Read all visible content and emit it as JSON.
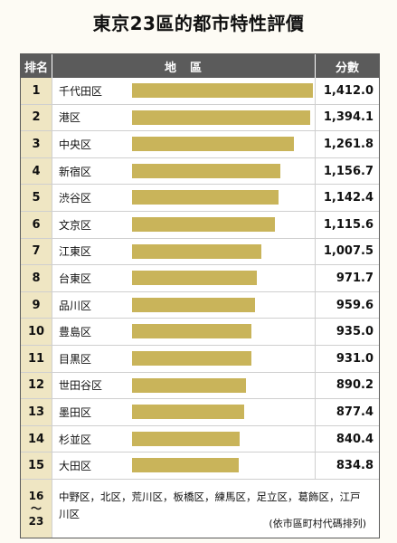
{
  "title": "東京23區的都市特性評價",
  "header": {
    "rank_label": "排名",
    "area_label": "地　區",
    "score_label": "分數"
  },
  "chart_data": {
    "type": "bar",
    "title": "東京23區的都市特性評價",
    "categories": [
      "千代田区",
      "港区",
      "中央区",
      "新宿区",
      "渋谷区",
      "文京区",
      "江東区",
      "台東区",
      "品川区",
      "豊島区",
      "目黒区",
      "世田谷区",
      "墨田区",
      "杉並区",
      "大田区"
    ],
    "ranks": [
      "1",
      "2",
      "3",
      "4",
      "5",
      "6",
      "7",
      "8",
      "9",
      "10",
      "11",
      "12",
      "13",
      "14",
      "15"
    ],
    "values": [
      1412.0,
      1394.1,
      1261.8,
      1156.7,
      1142.4,
      1115.6,
      1007.5,
      971.7,
      959.6,
      935.0,
      931.0,
      890.2,
      877.4,
      840.4,
      834.8
    ],
    "value_labels": [
      "1,412.0",
      "1,394.1",
      "1,261.8",
      "1,156.7",
      "1,142.4",
      "1,115.6",
      "1,007.5",
      "971.7",
      "959.6",
      "935.0",
      "931.0",
      "890.2",
      "877.4",
      "840.4",
      "834.8"
    ],
    "bar_color": "#c9b45a"
  },
  "others": {
    "rank_top": "16",
    "rank_mid": "～",
    "rank_bottom": "23",
    "list_text": "中野区，北区，荒川区，板橋区，練馬区，足立区，葛飾区，江戸川区",
    "note": "(依市區町村代碼排列)"
  },
  "colors": {
    "header_bg": "#5b5b5b",
    "rank_bg": "#efe6c3",
    "page_bg": "#fdfbf4"
  }
}
